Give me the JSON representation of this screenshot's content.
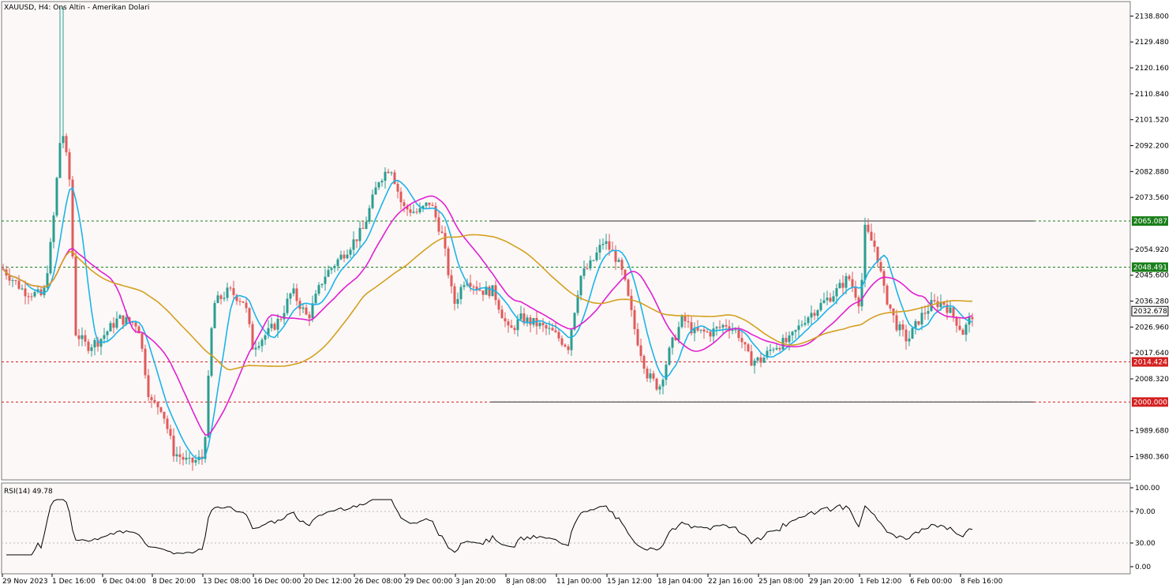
{
  "chart_data": {
    "type": "candlestick",
    "title": "XAUUSD, H4:  Ons Altin - Amerikan Dolari",
    "price_axis": {
      "min": 1972.0,
      "max": 2144.0,
      "ticks": [
        "2138.800",
        "2129.480",
        "2120.160",
        "2110.840",
        "2101.520",
        "2092.200",
        "2082.880",
        "2073.560",
        "2054.920",
        "2045.600",
        "2036.280",
        "2026.960",
        "2017.640",
        "2008.320",
        "1989.680",
        "1980.360"
      ]
    },
    "time_axis_labels": [
      "29 Nov 2023",
      "1 Dec 16:00",
      "6 Dec 04:00",
      "8 Dec 20:00",
      "13 Dec 08:00",
      "16 Dec 00:00",
      "20 Dec 12:00",
      "26 Dec 08:00",
      "29 Dec 00:00",
      "3 Jan 20:00",
      "8 Jan 08:00",
      "11 Jan 00:00",
      "15 Jan 12:00",
      "18 Jan 04:00",
      "22 Jan 16:00",
      "25 Jan 08:00",
      "29 Jan 20:00",
      "1 Feb 12:00",
      "6 Feb 00:00",
      "8 Feb 16:00"
    ],
    "price_levels": [
      {
        "value": 2065.087,
        "label": "2065.087",
        "style": "dashed",
        "color": "#1a7f1a",
        "tag_color": "#1a7f1a"
      },
      {
        "value": 2048.491,
        "label": "2048.491",
        "style": "dashed",
        "color": "#1a7f1a",
        "tag_color": "#1a7f1a"
      },
      {
        "value": 2014.424,
        "label": "2014.424",
        "style": "dashed",
        "color": "#d42020",
        "tag_color": "#d42020"
      },
      {
        "value": 2000.0,
        "label": "2000.000",
        "style": "dashed",
        "color": "#d42020",
        "tag_color": "#d42020"
      }
    ],
    "current_price": {
      "value": 2032.678,
      "label": "2032.678"
    },
    "range_box": {
      "top": 2065.087,
      "bottom": 2000.0,
      "from_label": "3 Jan 20:00"
    },
    "series": [
      {
        "name": "",
        "color": "#1cb4e8",
        "kind": "fast-ma"
      },
      {
        "name": "",
        "color": "#e020d0",
        "kind": "mid-ma"
      },
      {
        "name": "",
        "color": "#d4a020",
        "kind": "slow-ma"
      }
    ],
    "candle_colors": {
      "up": "#2a9d8f",
      "down": "#e05a5a"
    },
    "indicator": {
      "label": "RSI(14) 49.78",
      "ticks": [
        "100.00",
        "70.00",
        "30.00",
        "0.00"
      ],
      "levels": [
        70,
        30
      ],
      "last_value": 49.78
    }
  }
}
